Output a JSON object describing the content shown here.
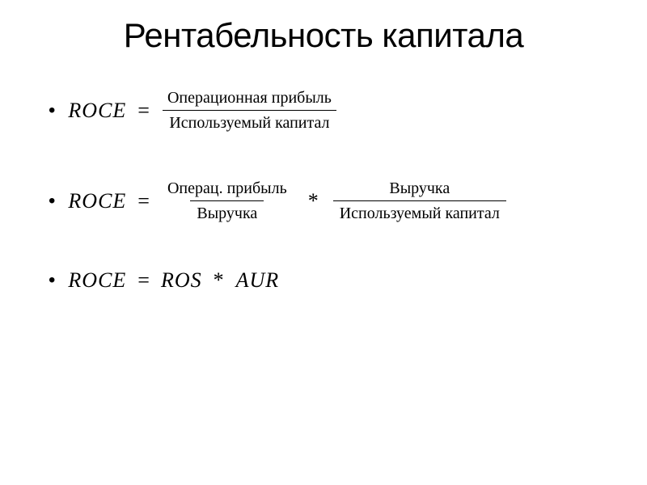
{
  "title": "Рентабельность капитала",
  "formulas": {
    "f1": {
      "lhs": "ROCE",
      "numerator": "Операционная прибыль",
      "denominator": "Используемый капитал"
    },
    "f2": {
      "lhs": "ROCE",
      "frac1_num": "Операц. прибыль",
      "frac1_den": "Выручка",
      "op": "*",
      "frac2_num": "Выручка",
      "frac2_den": "Используемый капитал"
    },
    "f3": {
      "lhs": "ROCE",
      "rhs_a": "ROS",
      "op": "*",
      "rhs_b": "AUR"
    }
  },
  "style": {
    "background_color": "#ffffff",
    "text_color": "#000000",
    "title_fontsize": 42,
    "formula_fontsize": 26,
    "fraction_fontsize": 20,
    "title_font": "Arial",
    "formula_font": "Times New Roman",
    "line_color": "#000000"
  }
}
